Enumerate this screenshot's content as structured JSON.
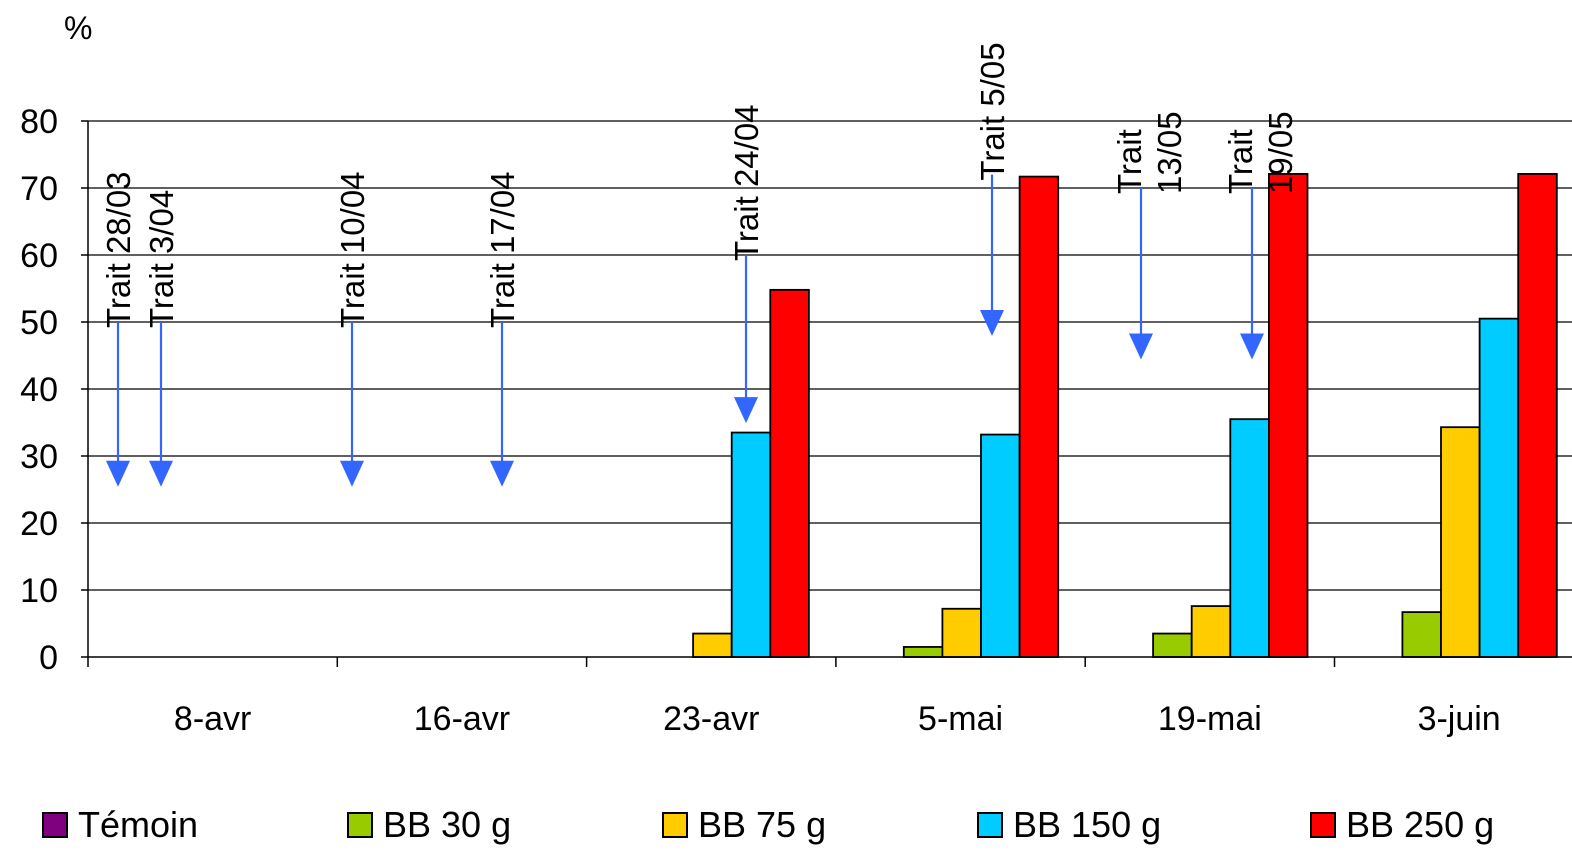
{
  "chart_data": {
    "type": "bar",
    "ylabel": "%",
    "ylim": [
      0,
      80
    ],
    "yticks": [
      "0",
      "10",
      "20",
      "30",
      "40",
      "50",
      "60",
      "70",
      "80"
    ],
    "categories": [
      "8-avr",
      "16-avr",
      "23-avr",
      "5-mai",
      "19-mai",
      "3-juin"
    ],
    "series": [
      {
        "name": "Témoin",
        "color": "#800080",
        "values": [
          0,
          0,
          0,
          0,
          0,
          0
        ]
      },
      {
        "name": "BB 30 g",
        "color": "#99CC00",
        "values": [
          0,
          0,
          0,
          1.5,
          3.5,
          6.7
        ]
      },
      {
        "name": "BB 75 g",
        "color": "#FFCC00",
        "values": [
          0,
          0,
          3.5,
          7.2,
          7.6,
          34.3
        ]
      },
      {
        "name": "BB 150 g",
        "color": "#00CCFF",
        "values": [
          0,
          0,
          33.5,
          33.2,
          35.5,
          50.5
        ]
      },
      {
        "name": "BB 250 g",
        "color": "#FF0000",
        "values": [
          0,
          0,
          54.8,
          71.7,
          72.1,
          72.1
        ]
      }
    ],
    "grid": true,
    "legend_position": "bottom",
    "annotations": [
      {
        "label": [
          "Trait 28/03"
        ],
        "y": 50,
        "y_end": 26
      },
      {
        "label": [
          "Trait 3/04"
        ],
        "y": 50,
        "y_end": 26
      },
      {
        "label": [
          "Trait 10/04"
        ],
        "y": 50,
        "y_end": 26
      },
      {
        "label": [
          "Trait 17/04"
        ],
        "y": 50,
        "y_end": 26
      },
      {
        "label": [
          "Trait 24/04"
        ],
        "y": 60,
        "y_end": 35.5
      },
      {
        "label": [
          "Trait 5/05"
        ],
        "y": 72,
        "y_end": 48.5
      },
      {
        "label": [
          "Trait",
          "13/05"
        ],
        "y": 70,
        "y_end": 45
      },
      {
        "label": [
          "Trait",
          "19/05"
        ],
        "y": 70,
        "y_end": 45
      }
    ],
    "arrow_color": "#3366FF"
  }
}
